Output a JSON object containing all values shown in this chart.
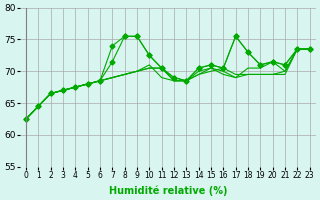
{
  "background_color": "#d8f5f0",
  "grid_color": "#aaaaaa",
  "line_color": "#00aa00",
  "marker_color": "#00aa00",
  "xlabel": "Humidité relative (%)",
  "ylabel_left": "",
  "xlim": [
    0,
    23
  ],
  "ylim": [
    55,
    80
  ],
  "yticks": [
    55,
    60,
    65,
    70,
    75,
    80
  ],
  "xtick_labels": [
    "0",
    "1",
    "2",
    "3",
    "4",
    "5",
    "6",
    "7",
    "8",
    "9",
    "10",
    "11",
    "12",
    "13",
    "14",
    "15",
    "16",
    "17",
    "18",
    "19",
    "20",
    "21",
    "22",
    "23"
  ],
  "series": [
    [
      62.5,
      64.5,
      66.5,
      67.0,
      67.5,
      68.0,
      68.5,
      74.0,
      75.5,
      75.5,
      72.5,
      70.5,
      69.0,
      68.5,
      70.5,
      71.0,
      70.5,
      75.5,
      73.0,
      71.0,
      71.5,
      71.0,
      73.5,
      73.5
    ],
    [
      62.5,
      64.5,
      66.5,
      67.0,
      67.5,
      68.0,
      68.5,
      69.0,
      69.5,
      70.0,
      70.5,
      70.5,
      68.5,
      68.5,
      69.5,
      70.0,
      70.5,
      69.5,
      69.5,
      69.5,
      69.5,
      69.5,
      73.5,
      73.5
    ],
    [
      62.5,
      64.5,
      66.5,
      67.0,
      67.5,
      68.0,
      68.5,
      69.0,
      69.5,
      70.0,
      70.5,
      70.5,
      68.5,
      68.5,
      70.0,
      70.5,
      70.0,
      69.0,
      70.5,
      70.5,
      71.5,
      70.0,
      73.5,
      73.5
    ],
    [
      62.5,
      64.5,
      66.5,
      67.0,
      67.5,
      68.0,
      68.5,
      69.0,
      69.5,
      70.0,
      71.0,
      69.0,
      68.5,
      68.5,
      69.5,
      70.5,
      69.5,
      69.0,
      69.5,
      69.5,
      69.5,
      70.0,
      73.5,
      73.5
    ],
    [
      62.5,
      64.5,
      66.5,
      67.0,
      67.5,
      68.0,
      68.5,
      71.5,
      75.5,
      75.5,
      72.5,
      70.5,
      69.0,
      68.5,
      70.5,
      71.0,
      70.5,
      75.5,
      73.0,
      71.0,
      71.5,
      71.0,
      73.5,
      73.5
    ]
  ],
  "marker_series": [
    0,
    4
  ],
  "title": ""
}
